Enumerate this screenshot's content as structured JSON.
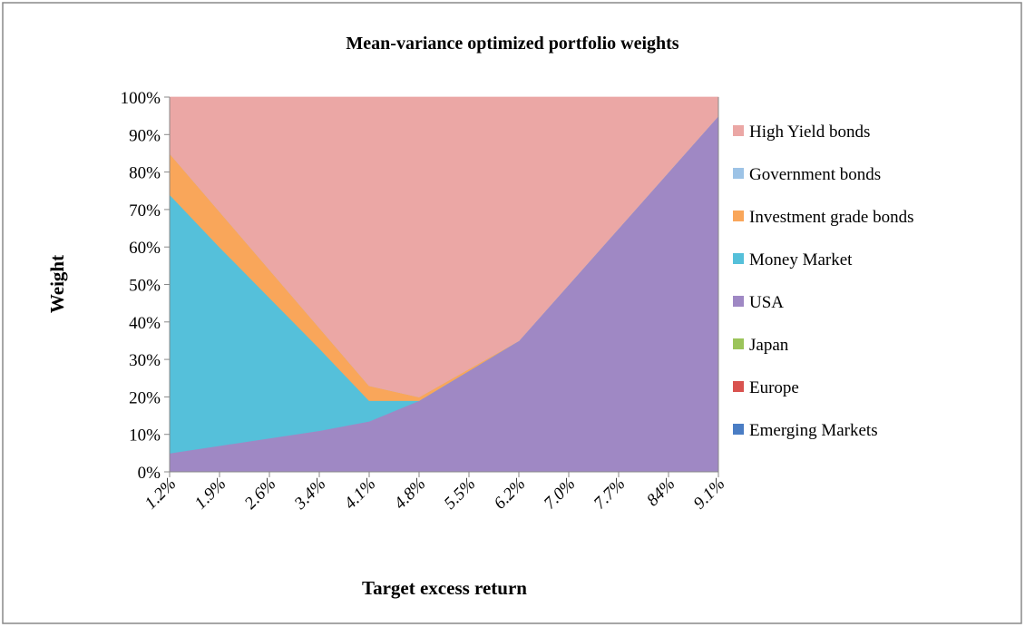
{
  "chart_data": {
    "type": "stacked_area",
    "title": "Mean-variance optimized portfolio weights",
    "x_label": "Target excess return",
    "y_label": "Weight",
    "categories": [
      "1.2%",
      "1.9%",
      "2.6%",
      "3.4%",
      "4.1%",
      "4.8%",
      "5.5%",
      "6.2%",
      "7.0%",
      "7.7%",
      "84%",
      "9.1%"
    ],
    "series": [
      {
        "name": "High Yield bonds",
        "color": "#eba7a5",
        "values": [
          15,
          30.5,
          46,
          61.5,
          77,
          80,
          72.5,
          65,
          50,
          35,
          20,
          5
        ]
      },
      {
        "name": "Government bonds",
        "color": "#9dc3e6",
        "values": [
          0,
          0,
          0,
          0,
          0,
          0,
          0,
          0,
          0,
          0,
          0,
          0
        ]
      },
      {
        "name": "Investment grade bonds",
        "color": "#f9a65a",
        "values": [
          11,
          9.5,
          7.5,
          5.5,
          4,
          1,
          0.5,
          0,
          0,
          0,
          0,
          0
        ]
      },
      {
        "name": "Money Market",
        "color": "#55c0da",
        "values": [
          69,
          53,
          37.5,
          22,
          5.5,
          0,
          0,
          0,
          0,
          0,
          0,
          0
        ]
      },
      {
        "name": "USA",
        "color": "#9f88c4",
        "values": [
          5,
          7,
          9,
          11,
          13.5,
          19,
          27,
          35,
          50,
          65,
          80,
          95
        ]
      },
      {
        "name": "Japan",
        "color": "#9bc45a",
        "values": [
          0,
          0,
          0,
          0,
          0,
          0,
          0,
          0,
          0,
          0,
          0,
          0
        ]
      },
      {
        "name": "Europe",
        "color": "#d9534f",
        "values": [
          0,
          0,
          0,
          0,
          0,
          0,
          0,
          0,
          0,
          0,
          0,
          0
        ]
      },
      {
        "name": "Emerging Markets",
        "color": "#4a7dc4",
        "values": [
          0,
          0,
          0,
          0,
          0,
          0,
          0,
          0,
          0,
          0,
          0,
          0
        ]
      }
    ],
    "ylim": [
      0,
      100
    ],
    "yticks": [
      {
        "value": 0,
        "label": "0%"
      },
      {
        "value": 10,
        "label": "10%"
      },
      {
        "value": 20,
        "label": "20%"
      },
      {
        "value": 30,
        "label": "30%"
      },
      {
        "value": 40,
        "label": "40%"
      },
      {
        "value": 50,
        "label": "50%"
      },
      {
        "value": 60,
        "label": "60%"
      },
      {
        "value": 70,
        "label": "70%"
      },
      {
        "value": 80,
        "label": "80%"
      },
      {
        "value": 90,
        "label": "90%"
      },
      {
        "value": 100,
        "label": "100%"
      }
    ],
    "legend": "right"
  }
}
